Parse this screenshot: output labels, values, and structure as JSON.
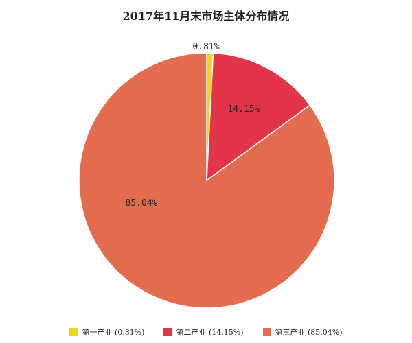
{
  "chart_data": {
    "type": "pie",
    "title": "2017年11月末市场主体分布情况",
    "slices": [
      {
        "label": "0.81%",
        "value": 0.81,
        "color": "#F2D31B",
        "legend": "第一产业 (0.81%)"
      },
      {
        "label": "14.15%",
        "value": 14.15,
        "color": "#E3344A",
        "legend": "第二产业 (14.15%)"
      },
      {
        "label": "85.04%",
        "value": 85.04,
        "color": "#E36C4F",
        "legend": "第三产业 (85.04%)"
      }
    ],
    "start": "12 o'clock",
    "direction": "clockwise",
    "legend_position": "bottom"
  }
}
